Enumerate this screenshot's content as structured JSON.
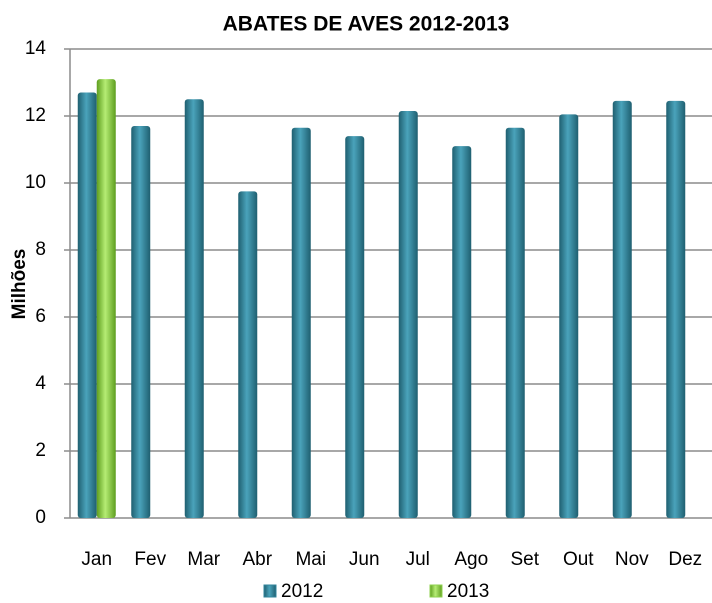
{
  "chart_data": {
    "type": "bar",
    "title": "ABATES DE AVES 2012-2013",
    "y_label": "Milhões",
    "categories": [
      "Jan",
      "Fev",
      "Mar",
      "Abr",
      "Mai",
      "Jun",
      "Jul",
      "Ago",
      "Set",
      "Out",
      "Nov",
      "Dez"
    ],
    "series": [
      {
        "name": "2012",
        "color": "#31849b",
        "values": [
          12.7,
          11.7,
          12.5,
          9.75,
          11.65,
          11.4,
          12.15,
          11.1,
          11.65,
          12.05,
          12.45,
          12.45
        ]
      },
      {
        "name": "2013",
        "color": "#8fd14f",
        "values": [
          13.1,
          null,
          null,
          null,
          null,
          null,
          null,
          null,
          null,
          null,
          null,
          null
        ]
      }
    ],
    "ylim": [
      0,
      14
    ],
    "yticks": [
      0,
      2,
      4,
      6,
      8,
      10,
      12,
      14
    ],
    "grid": true,
    "legend": "bottom"
  }
}
